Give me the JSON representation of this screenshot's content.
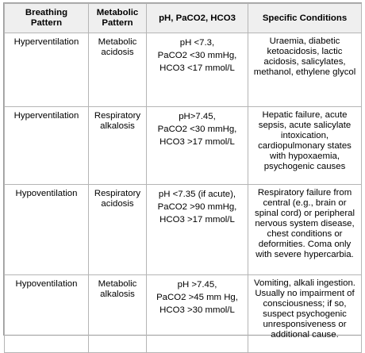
{
  "table": {
    "headers": [
      "Breathing Pattern",
      "Metabolic Pattern",
      "pH, PaCO2, HCO3",
      "Specific Conditions"
    ],
    "header_lines": [
      [
        "Breathing",
        "Pattern"
      ],
      [
        "Metabolic",
        "Pattern"
      ],
      [
        "pH, PaCO2, HCO3"
      ],
      [
        "Specific Conditions"
      ]
    ],
    "rows": [
      {
        "breathing": "Hyperventilation",
        "metabolic": [
          "Metabolic",
          "acidosis"
        ],
        "values": [
          "pH <7.3,",
          "PaCO2 <30 mmHg,",
          "HCO3 <17 mmol/L"
        ],
        "conditions": [
          "Uraemia, diabetic",
          "ketoacidosis, lactic",
          "acidosis, salicylates,",
          "methanol, ethylene glycol"
        ]
      },
      {
        "breathing": "Hyperventilation",
        "metabolic": [
          "Respiratory",
          "alkalosis"
        ],
        "values": [
          "pH>7.45,",
          "PaCO2 <30 mmHg,",
          "HCO3 >17 mmol/L"
        ],
        "conditions": [
          "Hepatic failure, acute",
          "sepsis, acute salicylate",
          "intoxication,",
          "cardiopulmonary states",
          "with hypoxaemia,",
          "psychogenic causes"
        ]
      },
      {
        "breathing": "Hypoventilation",
        "metabolic": [
          "Respiratory",
          "acidosis"
        ],
        "values": [
          "pH <7.35 (if acute),",
          "PaCO2 >90 mmHg,",
          "HCO3 >17 mmol/L"
        ],
        "conditions": [
          "Respiratory failure from",
          "central (e.g., brain or",
          "spinal cord) or peripheral",
          "nervous system disease,",
          "chest conditions or",
          "deformities. Coma only",
          "with severe hypercarbia."
        ]
      },
      {
        "breathing": "Hypoventilation",
        "metabolic": [
          "Metabolic",
          "alkalosis"
        ],
        "values": [
          "pH >7.45,",
          "PaCO2 >45 mm Hg,",
          "HCO3 >30 mmol/L"
        ],
        "conditions": [
          "Vomiting, alkali ingestion.",
          "Usually no impairment of",
          "consciousness; if so,",
          "suspect psychogenic",
          "unresponsiveness or",
          "additional cause."
        ]
      }
    ]
  }
}
